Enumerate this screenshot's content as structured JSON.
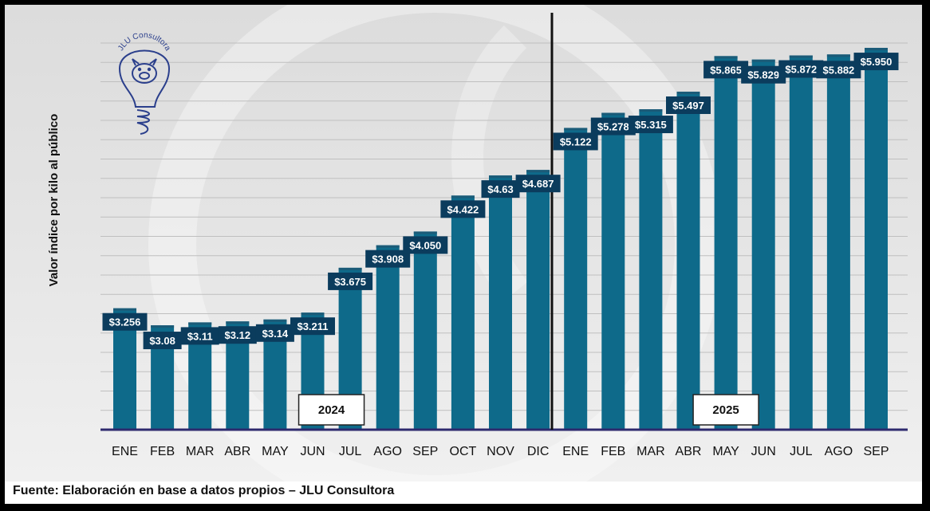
{
  "colors": {
    "bar": "#0e6a8a",
    "label_bg": "#0b3c5d",
    "axis": "#2e2a6e",
    "brand": "#2b3f8c"
  },
  "logo": {
    "text": "JLU Consultora",
    "icon": "pig-lightbulb-icon"
  },
  "source": "Fuente: Elaboración en base a datos propios – JLU Consultora",
  "chart_data": {
    "type": "bar",
    "title": "",
    "xlabel": "",
    "ylabel": "Valor índice por kilo al público",
    "ylim": [
      2000,
      6000
    ],
    "grid": true,
    "categories": [
      "ENE",
      "FEB",
      "MAR",
      "ABR",
      "MAY",
      "JUN",
      "JUL",
      "AGO",
      "SEP",
      "OCT",
      "NOV",
      "DIC",
      "ENE",
      "FEB",
      "MAR",
      "ABR",
      "MAY",
      "JUN",
      "JUL",
      "AGO",
      "SEP"
    ],
    "values": [
      3256,
      3080,
      3110,
      3120,
      3140,
      3211,
      3675,
      3908,
      4050,
      4422,
      4630,
      4687,
      5122,
      5278,
      5315,
      5497,
      5865,
      5829,
      5872,
      5882,
      5950
    ],
    "labels": [
      "$3.256",
      "$3.08",
      "$3.11",
      "$3.12",
      "$3.14",
      "$3.211",
      "$3.675",
      "$3.908",
      "$4.050",
      "$4.422",
      "$4.63",
      "$4.687",
      "$5.122",
      "$5.278",
      "$5.315",
      "$5.497",
      "$5.865",
      "$5.829",
      "$5.872",
      "$5.882",
      "$5.950"
    ],
    "label_position": [
      "top",
      "below",
      "top",
      "top",
      "top",
      "top",
      "top",
      "top",
      "top",
      "top",
      "top",
      "top",
      "top",
      "top",
      "below",
      "top",
      "top",
      "below",
      "top",
      "below",
      "top"
    ],
    "groups": [
      {
        "name": "2024",
        "start": 0,
        "end": 11
      },
      {
        "name": "2025",
        "start": 12,
        "end": 20
      }
    ]
  }
}
